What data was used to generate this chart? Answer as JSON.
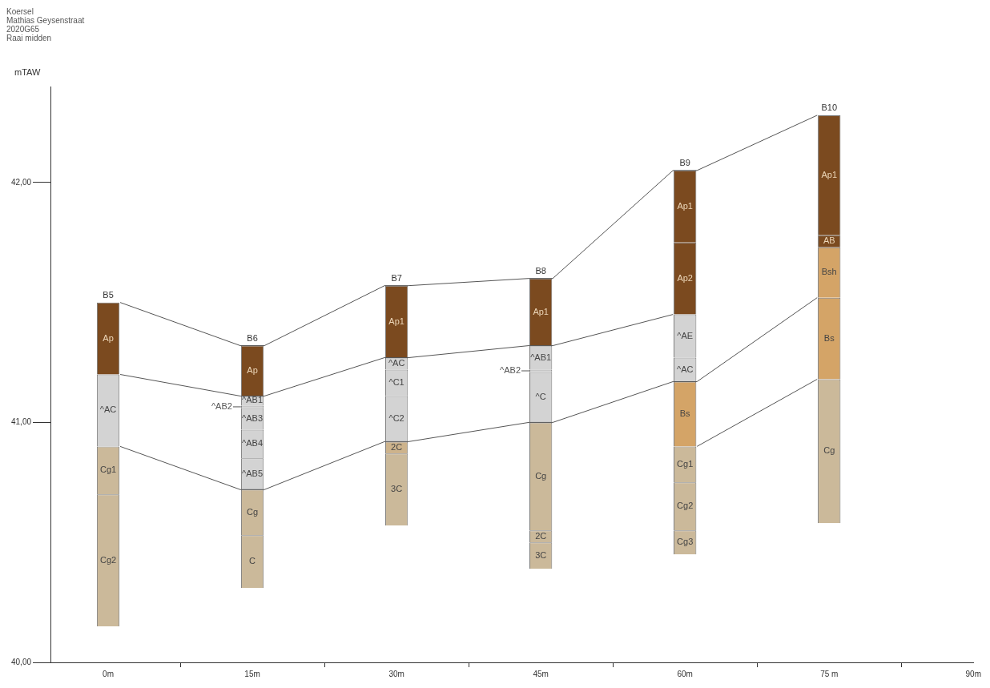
{
  "chart_data": {
    "type": "bar",
    "annotations": [
      "Koersel",
      "Mathias Geysenstraat",
      "2020G65",
      "Raai midden",
      {
        "text": "B5",
        "x": 0,
        "y": 41.5
      },
      {
        "text": "B6",
        "x": 15,
        "y": 41.32
      },
      {
        "text": "B7",
        "x": 30,
        "y": 41.57
      },
      {
        "text": "B8",
        "x": 45,
        "y": 41.6
      },
      {
        "text": "B9",
        "x": 60,
        "y": 42.05
      },
      {
        "text": "B10",
        "x": 75,
        "y": 42.28
      },
      "Ap",
      "^AC",
      "Cg1",
      "Cg2",
      "Ap",
      "^AB1",
      "^AB2",
      "^AB3",
      "^AB4",
      "^AB5",
      "Cg",
      "C",
      "Ap1",
      "^AC",
      "^C1",
      "^C2",
      "2C",
      "3C",
      "Ap1",
      "^AB1",
      "^AB2",
      "^C",
      "Cg",
      "2C",
      "3C",
      "Ap1",
      "Ap2",
      "^AE",
      "^AC",
      "Bs",
      "Cg1",
      "Cg2",
      "Cg3",
      "Ap1",
      "AB",
      "Bsh",
      "Bs",
      "Cg"
    ],
    "ylabel": "mTAW",
    "x": [
      0,
      15,
      30,
      45,
      60,
      75
    ],
    "xlim": [
      -6,
      90
    ],
    "xticks": [
      {
        "value": 0,
        "label": "0m"
      },
      {
        "value": 15,
        "label": "15m"
      },
      {
        "value": 30,
        "label": "30m"
      },
      {
        "value": 45,
        "label": "45m"
      },
      {
        "value": 60,
        "label": "60m"
      },
      {
        "value": 75,
        "label": "75 m"
      },
      {
        "value": 90,
        "label": "90m"
      }
    ],
    "ylim": [
      40,
      42.4
    ],
    "yticks": [
      {
        "value": 40,
        "label": "40,00"
      },
      {
        "value": 41,
        "label": "41,00"
      },
      {
        "value": 42,
        "label": "42,00"
      }
    ],
    "grid": false,
    "legend": false,
    "marker": "none",
    "series": [
      {
        "base": [
          41.2,
          41.11,
          41.27,
          41.32,
          41.75,
          41.78
        ],
        "values": [
          0.3,
          0.21,
          0.3,
          0.28,
          0.3,
          0.5
        ],
        "colors": [
          "#7b4a1f",
          "#7b4a1f",
          "#7b4a1f",
          "#7b4a1f",
          "#7b4a1f",
          "#7b4a1f"
        ]
      },
      {
        "base": [
          40.9,
          41.07,
          41.22,
          41.22,
          41.45,
          41.73
        ],
        "values": [
          0.3,
          0.04,
          0.05,
          0.1,
          0.3,
          0.05
        ],
        "colors": [
          "#d3d3d3",
          "#d3d3d3",
          "#d3d3d3",
          "#d3d3d3",
          "#7b4a1f",
          "#7b4a1f"
        ]
      },
      {
        "base": [
          40.7,
          41.06,
          41.11,
          41.21,
          41.27,
          41.52
        ],
        "values": [
          0.2,
          0.01,
          0.11,
          0.01,
          0.18,
          0.21
        ],
        "colors": [
          "#cbb99a",
          "#d3d3d3",
          "#d3d3d3",
          "#d3d3d3",
          "#d3d3d3",
          "#d4a467"
        ]
      },
      {
        "base": [
          40.15,
          40.97,
          40.92,
          41.0,
          41.17,
          41.18
        ],
        "values": [
          0.55,
          0.09,
          0.19,
          0.21,
          0.1,
          0.34
        ],
        "colors": [
          "#cbb99a",
          "#d3d3d3",
          "#d3d3d3",
          "#d3d3d3",
          "#d3d3d3",
          "#d4a467"
        ]
      },
      {
        "base": [
          null,
          40.85,
          40.87,
          40.55,
          40.9,
          40.58
        ],
        "values": [
          null,
          0.12,
          0.05,
          0.45,
          0.27,
          0.6
        ],
        "colors": [
          null,
          "#d3d3d3",
          "#cdb38c",
          "#cbb99a",
          "#d4a467",
          "#cbb99a"
        ]
      },
      {
        "base": [
          null,
          40.72,
          40.57,
          40.5,
          40.75,
          null
        ],
        "values": [
          null,
          0.13,
          0.3,
          0.05,
          0.15,
          null
        ],
        "colors": [
          null,
          "#d3d3d3",
          "#cbb99a",
          "#cbb99a",
          "#cbb99a",
          null
        ]
      },
      {
        "base": [
          null,
          40.53,
          null,
          40.39,
          40.55,
          null
        ],
        "values": [
          null,
          0.19,
          null,
          0.11,
          0.2,
          null
        ],
        "colors": [
          null,
          "#cbb99a",
          null,
          "#cbb99a",
          "#cbb99a",
          null
        ]
      },
      {
        "base": [
          null,
          40.31,
          null,
          null,
          40.45,
          null
        ],
        "values": [
          null,
          0.22,
          null,
          null,
          0.1,
          null
        ],
        "colors": [
          null,
          "#cbb99a",
          null,
          null,
          "#cbb99a",
          null
        ]
      },
      {
        "type": "line",
        "color": "#555555",
        "x": [
          1.25,
          13.75,
          16.25,
          28.75,
          31.25,
          43.75,
          46.25,
          58.75,
          61.25,
          73.75
        ],
        "values": [
          41.5,
          41.32,
          41.32,
          41.57,
          41.57,
          41.6,
          41.6,
          42.05,
          42.05,
          42.28
        ]
      },
      {
        "type": "line",
        "color": "#555555",
        "x": [
          1.25,
          13.75,
          16.25,
          28.75,
          31.25,
          43.75,
          46.25,
          58.75
        ],
        "values": [
          41.2,
          41.11,
          41.11,
          41.27,
          41.27,
          41.32,
          41.32,
          41.45
        ]
      },
      {
        "type": "line",
        "color": "#555555",
        "x": [
          1.25,
          13.75,
          16.25,
          28.75,
          31.25,
          43.75,
          46.25,
          58.75,
          61.25,
          73.75
        ],
        "values": [
          40.9,
          40.72,
          40.72,
          40.92,
          40.92,
          41.0,
          41.0,
          41.17,
          41.17,
          41.52
        ]
      },
      {
        "type": "line",
        "color": "#555555",
        "x": [
          61.25,
          73.75
        ],
        "values": [
          40.9,
          41.18
        ]
      }
    ]
  }
}
